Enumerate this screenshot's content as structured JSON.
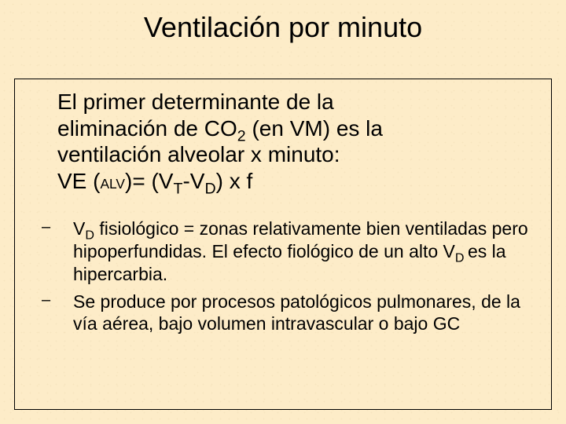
{
  "slide": {
    "background_color": "#fdecc8",
    "noise_overlay_color": "rgba(200,170,120,0.10)",
    "border_color": "#000000",
    "title_fontsize": 36,
    "body_fontsize": 28,
    "bullet_fontsize": 23,
    "font_family": "Verdana, Geneva, sans-serif"
  },
  "title": "Ventilación por minuto",
  "para": {
    "line1": "El primer determinante de la",
    "line2a": "eliminación de CO",
    "line2_sub": "2",
    "line2b": " (en VM) es la",
    "line3": "ventilación alveolar x minuto:",
    "line4": {
      "a": "VE (",
      "alv": "ALV",
      "b": ")= (V",
      "t": "T",
      "c": "-V",
      "d": "D",
      "e": ") x f"
    }
  },
  "bullets": [
    {
      "dash": "–",
      "a": "V",
      "sub1": "D",
      "b": " fisiológico = zonas relativamente bien ventiladas pero hipoperfundidas. El efecto fiológico de un alto V",
      "sub2": "D ",
      "c": "es la hipercarbia."
    },
    {
      "dash": "–",
      "text": "Se produce por procesos patológicos pulmonares, de la vía aérea, bajo volumen intravascular o bajo GC"
    }
  ]
}
